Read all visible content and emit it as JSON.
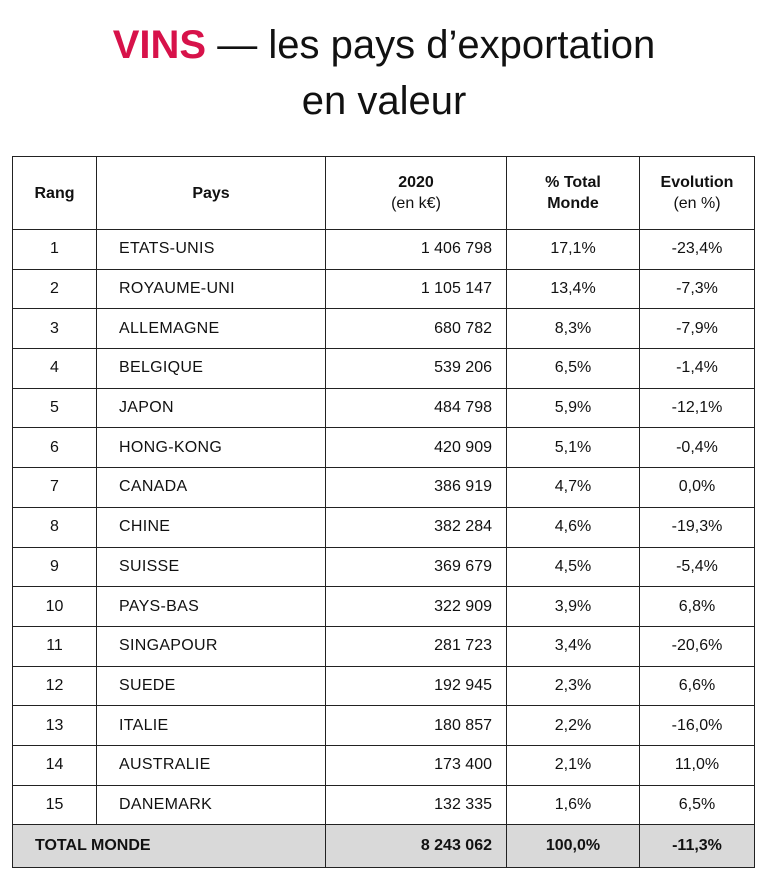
{
  "title": {
    "accent": "VINS",
    "dash": " — ",
    "line1_rest": "les pays d’exportation",
    "line2": "en valeur"
  },
  "colors": {
    "accent": "#d7124a",
    "total_row_bg": "#d9d9d9"
  },
  "table": {
    "headers": {
      "rang": "Rang",
      "pays": "Pays",
      "value_main": "2020",
      "value_sub": "(en k€)",
      "pct_main": "% Total",
      "pct_sub": "Monde",
      "evo_main": "Evolution",
      "evo_sub": "(en %)"
    },
    "rows": [
      {
        "rang": "1",
        "pays": "ETATS-UNIS",
        "value": "1 406 798",
        "pct": "17,1%",
        "evo": "-23,4%"
      },
      {
        "rang": "2",
        "pays": "ROYAUME-UNI",
        "value": "1 105 147",
        "pct": "13,4%",
        "evo": "-7,3%"
      },
      {
        "rang": "3",
        "pays": "ALLEMAGNE",
        "value": "680 782",
        "pct": "8,3%",
        "evo": "-7,9%"
      },
      {
        "rang": "4",
        "pays": "BELGIQUE",
        "value": "539 206",
        "pct": "6,5%",
        "evo": "-1,4%"
      },
      {
        "rang": "5",
        "pays": "JAPON",
        "value": "484 798",
        "pct": "5,9%",
        "evo": "-12,1%"
      },
      {
        "rang": "6",
        "pays": "HONG-KONG",
        "value": "420 909",
        "pct": "5,1%",
        "evo": "-0,4%"
      },
      {
        "rang": "7",
        "pays": "CANADA",
        "value": "386 919",
        "pct": "4,7%",
        "evo": "0,0%"
      },
      {
        "rang": "8",
        "pays": "CHINE",
        "value": "382 284",
        "pct": "4,6%",
        "evo": "-19,3%"
      },
      {
        "rang": "9",
        "pays": "SUISSE",
        "value": "369 679",
        "pct": "4,5%",
        "evo": "-5,4%"
      },
      {
        "rang": "10",
        "pays": "PAYS-BAS",
        "value": "322 909",
        "pct": "3,9%",
        "evo": "6,8%"
      },
      {
        "rang": "11",
        "pays": "SINGAPOUR",
        "value": "281 723",
        "pct": "3,4%",
        "evo": "-20,6%"
      },
      {
        "rang": "12",
        "pays": "SUEDE",
        "value": "192 945",
        "pct": "2,3%",
        "evo": "6,6%"
      },
      {
        "rang": "13",
        "pays": "ITALIE",
        "value": "180 857",
        "pct": "2,2%",
        "evo": "-16,0%"
      },
      {
        "rang": "14",
        "pays": "AUSTRALIE",
        "value": "173 400",
        "pct": "2,1%",
        "evo": "11,0%"
      },
      {
        "rang": "15",
        "pays": "DANEMARK",
        "value": "132 335",
        "pct": "1,6%",
        "evo": "6,5%"
      }
    ],
    "total": {
      "label": "TOTAL MONDE",
      "value": "8 243 062",
      "pct": "100,0%",
      "evo": "-11,3%"
    }
  }
}
